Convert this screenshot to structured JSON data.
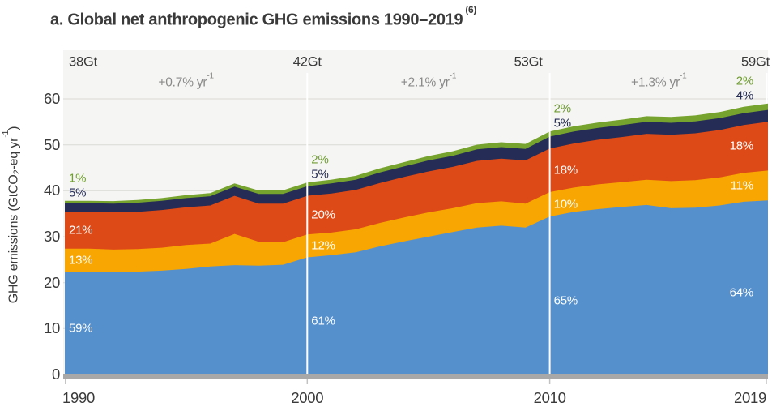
{
  "title": {
    "text": "a. Global net anthropogenic GHG emissions 1990–2019",
    "superscript": "(6)"
  },
  "y_axis": {
    "title_pre": "GHG emissions (GtCO",
    "title_sub": "2",
    "title_mid": "-eq yr",
    "title_sup": "-1",
    "title_end": ")",
    "ticks": [
      0,
      10,
      20,
      30,
      40,
      50,
      60
    ]
  },
  "x_axis": {
    "ticks": [
      "1990",
      "2000",
      "2010",
      "2019"
    ]
  },
  "colors": {
    "background": "#ffffff",
    "plot_background": "#f5f5f3",
    "gridline": "#dad9d5",
    "baseline": "#a8a8a8",
    "tick_mark": "#c2c2c2",
    "marker_line": "#ffffff",
    "text_dark": "#3a3a3a",
    "text_gray": "#8a8a8a",
    "label_green": "#6f9d30",
    "label_navy": "#252c55",
    "label_white": "#ffffff"
  },
  "chart_data": {
    "type": "area",
    "stacked": true,
    "grid": "horizontal",
    "ylim": [
      0,
      70.5
    ],
    "x": [
      1990,
      1991,
      1992,
      1993,
      1994,
      1995,
      1996,
      1997,
      1998,
      1999,
      2000,
      2001,
      2002,
      2003,
      2004,
      2005,
      2006,
      2007,
      2008,
      2009,
      2010,
      2011,
      2012,
      2013,
      2014,
      2015,
      2016,
      2017,
      2018,
      2019
    ],
    "series": [
      {
        "name": "blue-bottom-layer",
        "color": "#5590cc",
        "values": [
          22.4,
          22.4,
          22.3,
          22.4,
          22.6,
          23.0,
          23.5,
          23.8,
          23.7,
          23.9,
          25.5,
          26.0,
          26.6,
          27.9,
          29.0,
          30.0,
          31.0,
          32.0,
          32.4,
          32.0,
          34.4,
          35.4,
          36.0,
          36.5,
          36.9,
          36.2,
          36.3,
          36.8,
          37.6,
          37.9
        ]
      },
      {
        "name": "orange-layer",
        "color": "#f8a602",
        "values": [
          5.0,
          5.0,
          4.9,
          4.9,
          5.0,
          5.2,
          5.0,
          6.8,
          5.2,
          4.9,
          5.0,
          4.9,
          5.0,
          5.1,
          5.2,
          5.3,
          5.2,
          5.3,
          5.3,
          5.2,
          5.3,
          5.3,
          5.4,
          5.4,
          5.5,
          5.9,
          6.0,
          6.1,
          6.3,
          6.5
        ]
      },
      {
        "name": "red-layer",
        "color": "#dd4a17",
        "values": [
          8.0,
          8.0,
          8.1,
          8.1,
          8.2,
          8.2,
          8.3,
          8.3,
          8.3,
          8.4,
          8.4,
          8.5,
          8.6,
          8.7,
          8.8,
          8.9,
          9.0,
          9.2,
          9.3,
          9.4,
          9.5,
          9.6,
          9.7,
          9.8,
          10.0,
          10.1,
          10.2,
          10.3,
          10.4,
          10.6
        ]
      },
      {
        "name": "navy-layer",
        "color": "#252c55",
        "values": [
          1.9,
          1.9,
          1.9,
          2.0,
          2.0,
          2.0,
          2.0,
          2.0,
          2.1,
          2.1,
          2.1,
          2.2,
          2.2,
          2.3,
          2.3,
          2.4,
          2.4,
          2.5,
          2.5,
          2.5,
          2.6,
          2.6,
          2.6,
          2.6,
          2.6,
          2.6,
          2.6,
          2.6,
          2.6,
          2.6
        ]
      },
      {
        "name": "green-top-layer",
        "color": "#76a32e",
        "values": [
          0.5,
          0.5,
          0.55,
          0.6,
          0.6,
          0.65,
          0.7,
          0.7,
          0.75,
          0.8,
          0.8,
          0.83,
          0.86,
          0.9,
          0.93,
          0.96,
          1.0,
          1.03,
          1.06,
          1.08,
          1.1,
          1.13,
          1.17,
          1.2,
          1.23,
          1.27,
          1.3,
          1.33,
          1.37,
          1.4
        ]
      }
    ],
    "marker_years": [
      1990,
      2000,
      2010,
      2019
    ],
    "totals": [
      {
        "year": 1990,
        "label": "38Gt",
        "anchor": "start"
      },
      {
        "year": 2000,
        "label": "42Gt",
        "anchor": "middle"
      },
      {
        "year": 2010,
        "label": "53Gt",
        "anchor": "end"
      },
      {
        "year": 2019,
        "label": "59Gt",
        "anchor": "edge"
      }
    ],
    "growth_rates": [
      {
        "from": 1990,
        "to": 2000,
        "text": "+0.7% yr",
        "sup": "-1"
      },
      {
        "from": 2000,
        "to": 2010,
        "text": "+2.1% yr",
        "sup": "-1"
      },
      {
        "from": 2010,
        "to": 2019,
        "text": "+1.3% yr",
        "sup": "-1"
      }
    ],
    "share_labels": [
      {
        "year": 1990,
        "anchor": "start",
        "items": [
          {
            "text": "1%",
            "style": "green"
          },
          {
            "text": "5%",
            "style": "navy"
          },
          {
            "text": "21%",
            "style": "white",
            "band": "red-layer"
          },
          {
            "text": "13%",
            "style": "white",
            "band": "orange-layer"
          },
          {
            "text": "59%",
            "style": "white",
            "band": "blue-bottom-layer"
          }
        ]
      },
      {
        "year": 2000,
        "anchor": "start",
        "items": [
          {
            "text": "2%",
            "style": "green"
          },
          {
            "text": "5%",
            "style": "navy"
          },
          {
            "text": "20%",
            "style": "white",
            "band": "red-layer"
          },
          {
            "text": "12%",
            "style": "white",
            "band": "orange-layer"
          },
          {
            "text": "61%",
            "style": "white",
            "band": "blue-bottom-layer"
          }
        ]
      },
      {
        "year": 2010,
        "anchor": "start",
        "items": [
          {
            "text": "2%",
            "style": "green"
          },
          {
            "text": "5%",
            "style": "navy"
          },
          {
            "text": "18%",
            "style": "white",
            "band": "red-layer"
          },
          {
            "text": "10%",
            "style": "white",
            "band": "orange-layer"
          },
          {
            "text": "65%",
            "style": "white",
            "band": "blue-bottom-layer"
          }
        ]
      },
      {
        "year": 2019,
        "anchor": "end",
        "items": [
          {
            "text": "2%",
            "style": "green"
          },
          {
            "text": "4%",
            "style": "navy"
          },
          {
            "text": "18%",
            "style": "white",
            "band": "red-layer"
          },
          {
            "text": "11%",
            "style": "white",
            "band": "orange-layer"
          },
          {
            "text": "64%",
            "style": "white",
            "band": "blue-bottom-layer"
          }
        ]
      }
    ]
  }
}
